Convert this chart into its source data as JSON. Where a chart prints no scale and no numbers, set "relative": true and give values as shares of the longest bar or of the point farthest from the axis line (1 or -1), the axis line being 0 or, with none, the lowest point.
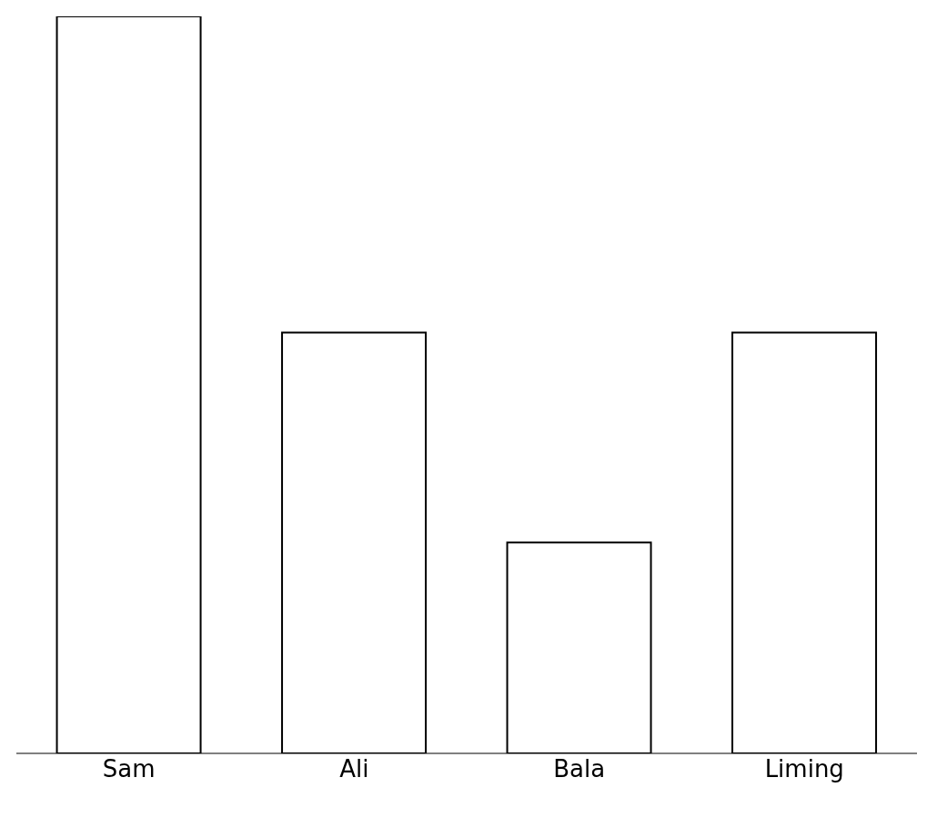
{
  "chart_data": {
    "type": "bar",
    "relative": true,
    "categories": [
      "Sam",
      "Ali",
      "Bala",
      "Liming"
    ],
    "values": [
      1,
      0.571,
      0.286,
      0.571
    ],
    "color": "#000000"
  }
}
